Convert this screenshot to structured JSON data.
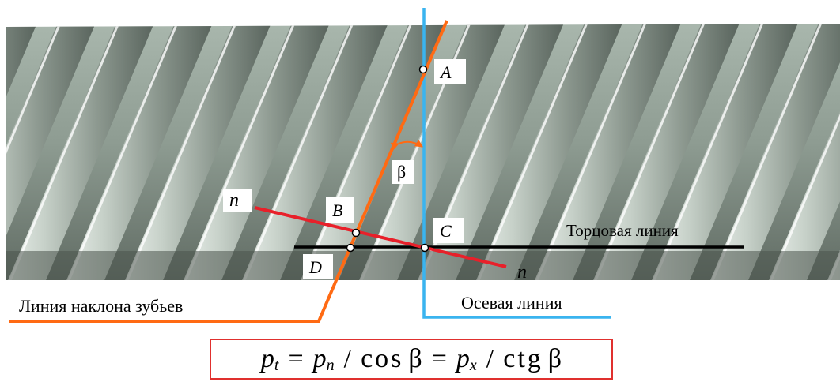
{
  "diagram": {
    "points": {
      "A": "A",
      "B": "B",
      "C": "C",
      "D": "D"
    },
    "angle": "β",
    "normal_top": "n",
    "normal_bottom": "n",
    "labels": {
      "face_line": "Торцовая линия",
      "tooth_line": "Линия наклона зубьев",
      "axial_line": "Осевая линия"
    }
  },
  "formula": {
    "p": "p",
    "t": "t",
    "eq1": "=",
    "n": "n",
    "slash1": "/",
    "cos": "cos",
    "beta1": "β",
    "eq2": "=",
    "x": "x",
    "slash2": "/",
    "ctg": "ctg",
    "beta2": "β"
  },
  "colors": {
    "tooth_line": "#ff6a13",
    "axial_line": "#3ab4ef",
    "normal_line": "#e8202a",
    "face_line": "#000000",
    "formula_border": "#e0302e"
  }
}
